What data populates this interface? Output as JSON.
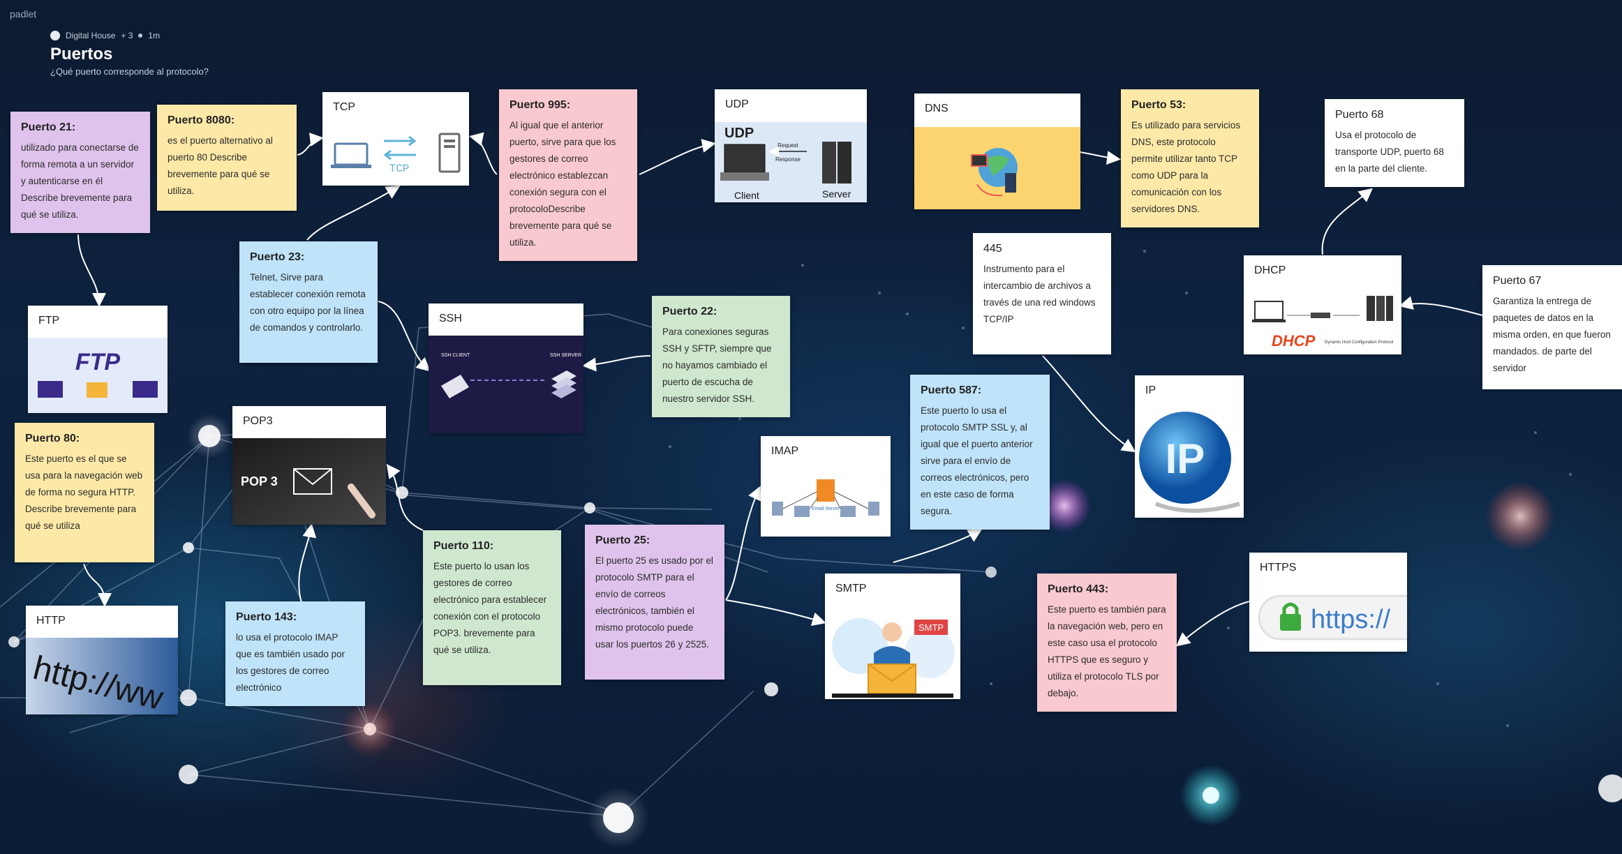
{
  "brand": "padlet",
  "header": {
    "author": "Digital House",
    "contributors": "+ 3",
    "time": "1m",
    "title": "Puertos",
    "subtitle": "¿Qué puerto corresponde al protocolo?"
  },
  "colors": {
    "yellow": "#fde9a7",
    "pink": "#f9c9d0",
    "purple": "#dfc3ec",
    "blue": "#bfe3f9",
    "green": "#cfe7cf",
    "white": "#ffffff"
  },
  "cards": {
    "p21": {
      "title": "Puerto 21:",
      "body": "utilizado para conectarse de forma remota a un servidor y autenticarse en él Describe brevemente para qué se utiliza."
    },
    "p8080": {
      "title": "Puerto 8080:",
      "body": "es el puerto alternativo al puerto 80 Describe brevemente para qué se utiliza."
    },
    "tcp": {
      "title": "TCP",
      "image_label": "TCP"
    },
    "p995": {
      "title": "Puerto 995:",
      "body": "Al igual que el anterior puerto, sirve para que los gestores de correo electrónico establezcan conexión segura con el protocoloDescribe brevemente para qué se utiliza."
    },
    "udp": {
      "title": "UDP",
      "image_label": "UDP",
      "client": "Client",
      "server": "Server",
      "request": "Request",
      "response": "Response"
    },
    "dns": {
      "title": "DNS"
    },
    "p53": {
      "title": "Puerto 53:",
      "body": "Es utilizado para servicios DNS, este protocolo permite utilizar tanto TCP como UDP para la comunicación con los servidores DNS."
    },
    "p68": {
      "title": "Puerto 68",
      "body": "Usa el protocolo de transporte UDP, puerto 68 en la parte del cliente."
    },
    "p23": {
      "title": "Puerto 23:",
      "body": "Telnet, Sirve para establecer conexión remota con otro equipo por la línea de comandos y controlarlo."
    },
    "ftp": {
      "title": "FTP",
      "image_label": "FTP"
    },
    "ssh": {
      "title": "SSH",
      "client": "SSH CLIENT",
      "server": "SSH SERVER"
    },
    "p22": {
      "title": "Puerto 22:",
      "body": "Para conexiones seguras SSH y SFTP, siempre que no hayamos cambiado el puerto de escucha de nuestro servidor SSH."
    },
    "p445": {
      "title": "445",
      "body": "Instrumento para el intercambio de archivos a través de una red windows TCP/IP"
    },
    "dhcp": {
      "title": "DHCP",
      "image_label": "DHCP",
      "image_sub": "Dynamic Host Configuration Protocol"
    },
    "p67": {
      "title": "Puerto 67",
      "body": "Garantiza la entrega de paquetes de datos en la misma orden, en que fueron mandados. de parte del servidor"
    },
    "pop3": {
      "title": "POP3",
      "image_label": "POP 3"
    },
    "p80": {
      "title": "Puerto 80:",
      "body": "Este puerto es el que se usa para la navegación web de forma no segura HTTP. Describe brevemente para qué se utiliza"
    },
    "imap": {
      "title": "IMAP",
      "image_label": "Email Server"
    },
    "p587": {
      "title": "Puerto 587:",
      "body": "Este puerto lo usa el protocolo SMTP SSL y, al igual que el puerto anterior sirve para el envío de correos electrónicos, pero en este caso de forma segura."
    },
    "ip": {
      "title": "IP",
      "image_label": "IP"
    },
    "p110": {
      "title": "Puerto 110:",
      "body": "Este puerto lo usan los gestores de correo electrónico para establecer conexión con el protocolo POP3. brevemente para qué se utiliza."
    },
    "p25": {
      "title": "Puerto 25:",
      "body": "El puerto 25 es usado por el protocolo SMTP para el envío de correos electrónicos, también el mismo protocolo puede usar los puertos 26 y 2525."
    },
    "https": {
      "title": "HTTPS",
      "image_label": "https://"
    },
    "http": {
      "title": "HTTP",
      "image_label": "http://ww"
    },
    "p143": {
      "title": "Puerto 143:",
      "body": "lo usa el protocolo IMAP que es también usado por los gestores de correo electrónico"
    },
    "smtp": {
      "title": "SMTP",
      "image_label": "SMTP"
    },
    "p443": {
      "title": "Puerto 443:",
      "body": "Este puerto es también para la navegación web, pero en este caso usa el protocolo HTTPS que es seguro y utiliza el protocolo TLS por debajo."
    }
  }
}
